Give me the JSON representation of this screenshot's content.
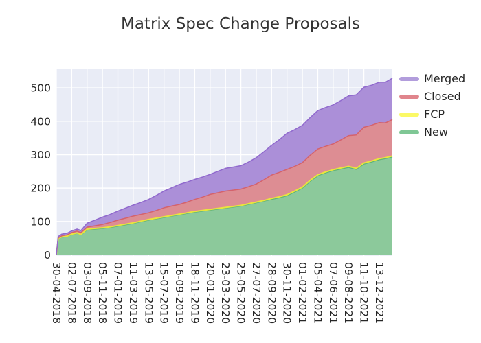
{
  "title": "Matrix Spec Change Proposals",
  "chart_data": {
    "type": "area",
    "stacked": true,
    "title": "Matrix Spec Change Proposals",
    "xlabel": "",
    "ylabel": "",
    "background_color": "#e9ecf6",
    "grid_color": "#ffffff",
    "grid": true,
    "legend_position": "right-outside-top",
    "y_ticks": [
      0,
      100,
      200,
      300,
      400,
      500
    ],
    "ylim": [
      0,
      557
    ],
    "x_tick_labels": [
      "30-04-2018",
      "02-07-2018",
      "03-09-2018",
      "05-11-2018",
      "07-01-2019",
      "11-03-2019",
      "13-05-2019",
      "15-07-2019",
      "16-09-2019",
      "18-11-2019",
      "20-01-2020",
      "23-03-2020",
      "25-05-2020",
      "27-07-2020",
      "28-09-2020",
      "30-11-2020",
      "01-02-2021",
      "05-04-2021",
      "07-06-2021",
      "09-08-2021",
      "11-10-2021",
      "13-12-2021"
    ],
    "samples_x_tick_units": [
      0,
      0.12,
      0.35,
      0.7,
      1,
      1.35,
      1.6,
      2,
      2.5,
      3,
      3.5,
      4,
      4.5,
      5,
      5.5,
      6,
      6.5,
      7,
      7.5,
      8,
      8.5,
      9,
      9.5,
      10,
      10.5,
      11,
      11.5,
      12,
      12.5,
      13,
      13.5,
      14,
      14.5,
      15,
      15.5,
      16,
      16.5,
      17,
      17.5,
      18,
      18.5,
      19,
      19.5,
      20,
      20.5,
      21,
      21.4,
      21.85
    ],
    "series": [
      {
        "name": "New",
        "area_color": "#8cc99b",
        "line_color": "#5db378",
        "legend_color": "#7fc795",
        "values": [
          0,
          48,
          53,
          55,
          61,
          65,
          60,
          75,
          77,
          79,
          82,
          86,
          90,
          94,
          99,
          104,
          108,
          112,
          116,
          120,
          124,
          128,
          131,
          134,
          137,
          140,
          143,
          146,
          151,
          156,
          161,
          166,
          171,
          177,
          188,
          200,
          220,
          237,
          245,
          252,
          257,
          262,
          256,
          272,
          278,
          285,
          288,
          293
        ]
      },
      {
        "name": "FCP",
        "area_color": "#f7f55e",
        "line_color": "#e9e53c",
        "legend_color": "#fbf966",
        "values": [
          0,
          1,
          1,
          1,
          1,
          1,
          1,
          2,
          2,
          2,
          2,
          2,
          2,
          2,
          2,
          2,
          2,
          2,
          2,
          2,
          2,
          2,
          2,
          2,
          2,
          2,
          2,
          2,
          2,
          2,
          2,
          3,
          3,
          3,
          3,
          3,
          3,
          3,
          3,
          3,
          3,
          3,
          3,
          3,
          3,
          3,
          3,
          3
        ]
      },
      {
        "name": "Closed",
        "area_color": "#dd8d93",
        "line_color": "#d4626c",
        "legend_color": "#e0858c",
        "values": [
          0,
          2,
          3,
          4,
          5,
          5,
          6,
          6,
          8,
          10,
          13,
          16,
          18,
          20,
          20,
          20,
          23,
          27,
          28,
          29,
          32,
          36,
          40,
          45,
          47,
          49,
          49,
          49,
          51,
          54,
          62,
          70,
          73,
          76,
          74,
          73,
          75,
          77,
          77,
          77,
          84,
          92,
          100,
          107,
          107,
          108,
          104,
          109
        ]
      },
      {
        "name": "Merged",
        "area_color": "#ab8fd8",
        "line_color": "#9069cd",
        "legend_color": "#b29ddc",
        "values": [
          0,
          4,
          5,
          5,
          5,
          6,
          6,
          12,
          17,
          22,
          24,
          27,
          30,
          33,
          36,
          40,
          45,
          50,
          55,
          60,
          60,
          60,
          60,
          60,
          64,
          68,
          69,
          70,
          74,
          79,
          84,
          89,
          98,
          108,
          110,
          112,
          113,
          115,
          116,
          117,
          118,
          119,
          120,
          120,
          120,
          121,
          122,
          124
        ]
      }
    ]
  }
}
